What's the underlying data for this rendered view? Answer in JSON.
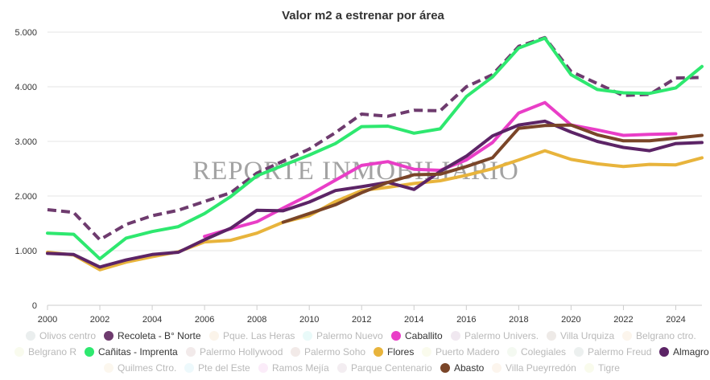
{
  "chart_data": {
    "type": "line",
    "title": "Valor m2 a estrenar por área",
    "watermark": "REPORTE INMOBILIARIO",
    "xlabel": "",
    "ylabel": "",
    "xlim": [
      2000,
      2025
    ],
    "ylim": [
      0,
      5000
    ],
    "x_ticks": [
      2000,
      2002,
      2004,
      2006,
      2008,
      2010,
      2012,
      2014,
      2016,
      2018,
      2020,
      2022,
      2024
    ],
    "y_ticks": [
      {
        "value": 0,
        "label": "0"
      },
      {
        "value": 1000,
        "label": "1.000"
      },
      {
        "value": 2000,
        "label": "2.000"
      },
      {
        "value": 3000,
        "label": "3.000"
      },
      {
        "value": 4000,
        "label": "4.000"
      },
      {
        "value": 5000,
        "label": "5.000"
      }
    ],
    "grid": "horizontal",
    "legend_position": "bottom",
    "series": [
      {
        "name": "Olivos centro",
        "color": "#c9d3d3",
        "visible": false
      },
      {
        "name": "Recoleta - B° Norte",
        "color": "#6e3b6e",
        "visible": true,
        "dashed": true,
        "x": [
          2000,
          2001,
          2002,
          2003,
          2004,
          2005,
          2006,
          2007,
          2008,
          2009,
          2010,
          2011,
          2012,
          2013,
          2014,
          2015,
          2016,
          2017,
          2018,
          2019,
          2020,
          2021,
          2022,
          2023,
          2024,
          2025
        ],
        "values": [
          1750,
          1700,
          1200,
          1480,
          1640,
          1740,
          1900,
          2060,
          2420,
          2640,
          2860,
          3160,
          3500,
          3460,
          3570,
          3560,
          4000,
          4220,
          4740,
          4900,
          4280,
          4060,
          3840,
          3860,
          4160,
          4170
        ]
      },
      {
        "name": "Pque. Las Heras",
        "color": "#f5e2c7",
        "visible": false
      },
      {
        "name": "Palermo Nuevo",
        "color": "#c6f3ef",
        "visible": false
      },
      {
        "name": "Caballito",
        "color": "#e93ec7",
        "visible": true,
        "x": [
          2006,
          2007,
          2008,
          2009,
          2010,
          2011,
          2012,
          2013,
          2014,
          2015,
          2016,
          2017,
          2018,
          2019,
          2020,
          2021,
          2022,
          2023,
          2024
        ],
        "values": [
          1260,
          1400,
          1530,
          1780,
          2020,
          2290,
          2560,
          2630,
          2490,
          2470,
          2660,
          2980,
          3520,
          3710,
          3300,
          3210,
          3110,
          3130,
          3140
        ]
      },
      {
        "name": "Palermo Univers.",
        "color": "#d8c3d7",
        "visible": false
      },
      {
        "name": "Villa Urquiza",
        "color": "#d3c7c1",
        "visible": false
      },
      {
        "name": "Belgrano ctro.",
        "color": "#f6e4cd",
        "visible": false
      },
      {
        "name": "Belgrano R",
        "color": "#eff5d2",
        "visible": false
      },
      {
        "name": "Cañitas - Imprenta",
        "color": "#2ee86f",
        "visible": true,
        "x": [
          2000,
          2001,
          2002,
          2003,
          2004,
          2005,
          2006,
          2007,
          2008,
          2009,
          2010,
          2011,
          2012,
          2013,
          2014,
          2015,
          2016,
          2017,
          2018,
          2019,
          2020,
          2021,
          2022,
          2023,
          2024,
          2025
        ],
        "values": [
          1320,
          1300,
          850,
          1230,
          1350,
          1440,
          1680,
          1990,
          2370,
          2560,
          2750,
          2960,
          3270,
          3280,
          3150,
          3230,
          3820,
          4180,
          4710,
          4890,
          4220,
          3950,
          3890,
          3880,
          3980,
          4370
        ]
      },
      {
        "name": "Palermo Hollywood",
        "color": "#dcc8c8",
        "visible": false
      },
      {
        "name": "Palermo Soho",
        "color": "#dcc9c3",
        "visible": false
      },
      {
        "name": "Flores",
        "color": "#e8b43c",
        "visible": true,
        "x": [
          2000,
          2001,
          2002,
          2003,
          2004,
          2005,
          2006,
          2007,
          2008,
          2009,
          2010,
          2011,
          2012,
          2013,
          2014,
          2015,
          2016,
          2017,
          2018,
          2019,
          2020,
          2021,
          2022,
          2023,
          2024,
          2025
        ],
        "values": [
          970,
          920,
          650,
          790,
          890,
          980,
          1160,
          1190,
          1320,
          1520,
          1640,
          1900,
          2100,
          2160,
          2230,
          2280,
          2380,
          2500,
          2660,
          2830,
          2670,
          2590,
          2540,
          2580,
          2570,
          2700
        ]
      },
      {
        "name": "Puerto Madero",
        "color": "#f3f5d0",
        "visible": false
      },
      {
        "name": "Colegiales",
        "color": "#e1f0d9",
        "visible": false
      },
      {
        "name": "Palermo Freud",
        "color": "#ccd8d6",
        "visible": false
      },
      {
        "name": "Almagro",
        "color": "#5c2466",
        "visible": true,
        "x": [
          2000,
          2001,
          2002,
          2003,
          2004,
          2005,
          2006,
          2007,
          2008,
          2009,
          2010,
          2011,
          2012,
          2013,
          2014,
          2015,
          2016,
          2017,
          2018,
          2019,
          2020,
          2021,
          2022,
          2023,
          2024,
          2025
        ],
        "values": [
          950,
          930,
          700,
          830,
          930,
          970,
          1200,
          1410,
          1740,
          1730,
          1890,
          2100,
          2170,
          2250,
          2120,
          2450,
          2730,
          3100,
          3300,
          3370,
          3170,
          3000,
          2890,
          2830,
          2960,
          2980
        ]
      },
      {
        "name": "Quilmes Ctro.",
        "color": "#f6e9d1",
        "visible": false
      },
      {
        "name": "Pte del Este",
        "color": "#cfeef6",
        "visible": false
      },
      {
        "name": "Ramos Mejía",
        "color": "#f4cdee",
        "visible": false
      },
      {
        "name": "Parque Centenario",
        "color": "#dfd0da",
        "visible": false
      },
      {
        "name": "Abasto",
        "color": "#7a4528",
        "visible": true,
        "x": [
          2009,
          2010,
          2011,
          2012,
          2013,
          2014,
          2015,
          2016,
          2017,
          2018,
          2019,
          2020,
          2021,
          2022,
          2023,
          2024,
          2025
        ],
        "values": [
          1520,
          1680,
          1840,
          2060,
          2250,
          2390,
          2400,
          2540,
          2700,
          3240,
          3290,
          3300,
          3120,
          3010,
          3010,
          3060,
          3110
        ]
      },
      {
        "name": "Villa Pueyrredón",
        "color": "#f7e6cf",
        "visible": false
      },
      {
        "name": "Tigre",
        "color": "#eef5cc",
        "visible": false
      }
    ]
  }
}
